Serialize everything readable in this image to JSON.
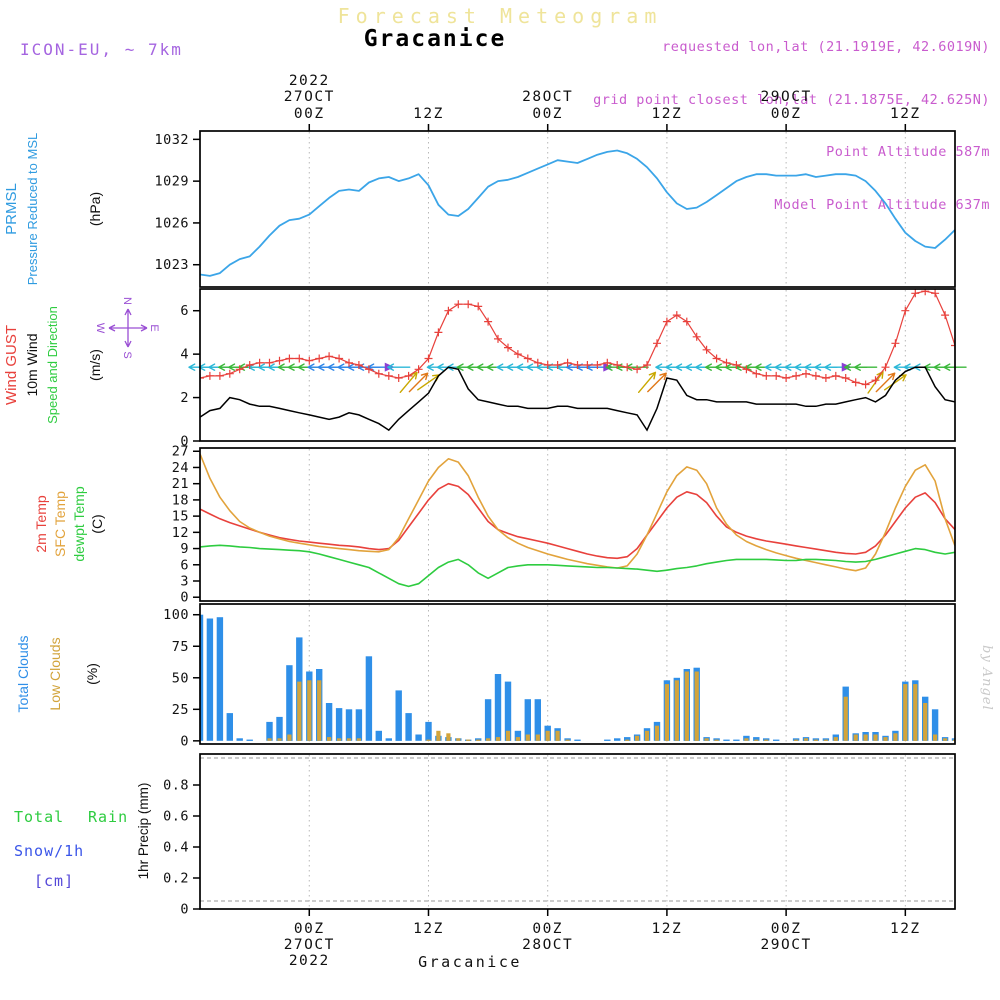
{
  "header": {
    "faint_title": "Forecast Meteogram",
    "station": "Gracanice",
    "model": "ICON-EU, ~ 7km",
    "requested": "requested lon,lat (21.1919E, 42.6019N)",
    "grid_point": "grid point closest lon,lat (21.1875E, 42.625N)",
    "point_altitude": "Point Altitude 587m",
    "model_altitude": "Model Point Altitude 637m"
  },
  "footer": {
    "station": "Gracanice"
  },
  "watermark": "by Angel",
  "labels": {
    "p1": {
      "l1": "PRMSL",
      "l2": "Pressure Reduced to MSL",
      "unit": "(hPa)"
    },
    "p2": {
      "l1": "Wind GUST",
      "l2": "10m Wind",
      "l3": "Speed and Direction",
      "unit": "(m/s)",
      "compass": {
        "n": "N",
        "s": "S",
        "w": "W",
        "e": "E"
      }
    },
    "p3": {
      "l1": "2m Temp",
      "l2": "SFC Temp",
      "l3": "dewpt Temp",
      "unit": "(C)"
    },
    "p4": {
      "l1": "Total Clouds",
      "l2": "Low Clouds",
      "unit": "(%)"
    },
    "p5": {
      "l1a": "Total",
      "l1b": "Rain",
      "l2": "Snow/1h",
      "l3": "[cm]",
      "unit": "1hr Precip (mm)"
    }
  },
  "chart_data": {
    "type": "meteogram",
    "x_axis": {
      "h0": 1,
      "h1": 77,
      "ticks": [
        {
          "h": 12,
          "z": "00Z",
          "date": "27OCT",
          "year": "2022"
        },
        {
          "h": 24,
          "z": "12Z"
        },
        {
          "h": 36,
          "z": "00Z",
          "date": "28OCT"
        },
        {
          "h": 48,
          "z": "12Z"
        },
        {
          "h": 60,
          "z": "00Z",
          "date": "29OCT"
        },
        {
          "h": 72,
          "z": "12Z"
        }
      ]
    },
    "panels": [
      {
        "name": "pressure",
        "type": "line",
        "ylim": [
          1021.4,
          1032.6
        ],
        "yticks": [
          1023,
          1026,
          1029,
          1032
        ],
        "ytick_labels": [
          "1023",
          "1026",
          "1029",
          "1032"
        ],
        "series": [
          {
            "name": "PRMSL",
            "color": "#3ba5e8",
            "values": [
              1022.3,
              1022.2,
              1022.4,
              1023.0,
              1023.4,
              1023.6,
              1024.3,
              1025.1,
              1025.8,
              1026.2,
              1026.3,
              1026.6,
              1027.2,
              1027.8,
              1028.3,
              1028.4,
              1028.3,
              1028.9,
              1029.2,
              1029.3,
              1029.0,
              1029.2,
              1029.5,
              1028.7,
              1027.3,
              1026.6,
              1026.5,
              1027.0,
              1027.8,
              1028.6,
              1029.0,
              1029.1,
              1029.3,
              1029.6,
              1029.9,
              1030.2,
              1030.5,
              1030.4,
              1030.3,
              1030.6,
              1030.9,
              1031.1,
              1031.2,
              1031.0,
              1030.6,
              1030.0,
              1029.2,
              1028.2,
              1027.4,
              1027.0,
              1027.1,
              1027.5,
              1028.0,
              1028.5,
              1029.0,
              1029.3,
              1029.5,
              1029.5,
              1029.4,
              1029.4,
              1029.4,
              1029.5,
              1029.3,
              1029.4,
              1029.5,
              1029.5,
              1029.4,
              1029.0,
              1028.3,
              1027.4,
              1026.3,
              1025.3,
              1024.7,
              1024.3,
              1024.2,
              1024.8,
              1025.5
            ]
          }
        ]
      },
      {
        "name": "wind",
        "type": "line",
        "ylim": [
          0,
          7
        ],
        "yticks": [
          0,
          2,
          4,
          6
        ],
        "ytick_labels": [
          "0",
          "2",
          "4",
          "6"
        ],
        "series": [
          {
            "name": "Wind GUST",
            "color": "#e8413c",
            "marker": "plus",
            "values": [
              2.9,
              3.0,
              3.0,
              3.1,
              3.3,
              3.5,
              3.6,
              3.6,
              3.7,
              3.8,
              3.8,
              3.7,
              3.8,
              3.9,
              3.8,
              3.6,
              3.5,
              3.3,
              3.1,
              3.0,
              2.9,
              3.0,
              3.3,
              3.8,
              5.0,
              6.0,
              6.3,
              6.3,
              6.2,
              5.5,
              4.7,
              4.3,
              4.0,
              3.8,
              3.6,
              3.5,
              3.5,
              3.6,
              3.5,
              3.5,
              3.5,
              3.6,
              3.5,
              3.4,
              3.3,
              3.5,
              4.5,
              5.5,
              5.8,
              5.5,
              4.8,
              4.2,
              3.8,
              3.6,
              3.5,
              3.3,
              3.1,
              3.0,
              3.0,
              2.9,
              3.0,
              3.1,
              3.0,
              2.9,
              3.0,
              2.9,
              2.7,
              2.6,
              2.8,
              3.4,
              4.5,
              6.0,
              6.8,
              6.9,
              6.8,
              5.8,
              4.4
            ]
          },
          {
            "name": "10m Wind",
            "color": "#000000",
            "values": [
              1.1,
              1.4,
              1.5,
              2.0,
              1.9,
              1.7,
              1.6,
              1.6,
              1.5,
              1.4,
              1.3,
              1.2,
              1.1,
              1.0,
              1.1,
              1.3,
              1.2,
              1.0,
              0.8,
              0.5,
              1.0,
              1.4,
              1.8,
              2.2,
              3.0,
              3.4,
              3.3,
              2.4,
              1.9,
              1.8,
              1.7,
              1.6,
              1.6,
              1.5,
              1.5,
              1.5,
              1.6,
              1.6,
              1.5,
              1.5,
              1.5,
              1.5,
              1.4,
              1.3,
              1.2,
              0.5,
              1.5,
              2.9,
              2.8,
              2.1,
              1.9,
              1.9,
              1.8,
              1.8,
              1.8,
              1.8,
              1.7,
              1.7,
              1.7,
              1.7,
              1.7,
              1.6,
              1.6,
              1.7,
              1.7,
              1.8,
              1.9,
              2.0,
              1.8,
              2.1,
              2.8,
              3.2,
              3.4,
              3.4,
              2.5,
              1.9,
              1.8
            ]
          }
        ],
        "direction_arrows": {
          "y": 3.4,
          "diag_y": 2.7,
          "default_angle": 180,
          "angle_overrides": {
            "20": 0,
            "22": 50,
            "23": 45,
            "24": 35,
            "42": 0,
            "46": 50,
            "47": 45,
            "66": 0,
            "69": 55,
            "70": 45,
            "71": 35
          },
          "palette": {
            "C": "#2bb8d8",
            "G": "#3bb83b",
            "B": "#2f86e8",
            "Y": "#c9a800",
            "O": "#e07818",
            "P": "#8a3fd4"
          },
          "colors": "CCCGGGCCCGGGBBBBBBBPCYOYCCCGGGGCCCCCCCBBBPGGGYOCCCCCGGGGGGCCCCCCCPGGYOYCCCGGG"
        }
      },
      {
        "name": "temperature",
        "type": "line",
        "ylim": [
          -0.7,
          27.6
        ],
        "yticks": [
          0,
          3,
          6,
          9,
          12,
          15,
          18,
          21,
          24,
          27
        ],
        "ytick_labels": [
          "0",
          "3",
          "6",
          "9",
          "12",
          "15",
          "18",
          "21",
          "24",
          "27"
        ],
        "series": [
          {
            "name": "2m Temp",
            "color": "#e8413c",
            "values": [
              16.3,
              15.4,
              14.5,
              13.8,
              13.2,
              12.6,
              12.0,
              11.5,
              11.0,
              10.7,
              10.4,
              10.2,
              10.0,
              9.8,
              9.6,
              9.5,
              9.3,
              9.0,
              8.8,
              9.0,
              10.5,
              13.0,
              15.5,
              18.0,
              20.0,
              21.0,
              20.5,
              19.0,
              16.5,
              14.0,
              12.5,
              11.8,
              11.2,
              10.8,
              10.4,
              10.0,
              9.5,
              9.0,
              8.5,
              8.0,
              7.6,
              7.3,
              7.2,
              7.5,
              9.0,
              11.5,
              14.0,
              16.5,
              18.5,
              19.5,
              19.0,
              17.5,
              15.0,
              13.0,
              12.0,
              11.3,
              10.8,
              10.4,
              10.1,
              9.8,
              9.5,
              9.2,
              8.9,
              8.6,
              8.3,
              8.1,
              8.0,
              8.3,
              9.5,
              11.5,
              14.0,
              16.5,
              18.5,
              19.3,
              17.5,
              14.5,
              12.5
            ]
          },
          {
            "name": "SFC Temp",
            "color": "#e2a33c",
            "values": [
              26.5,
              22.0,
              18.5,
              16.0,
              14.0,
              12.8,
              12.0,
              11.3,
              10.8,
              10.3,
              10.0,
              9.7,
              9.4,
              9.2,
              9.0,
              8.8,
              8.6,
              8.5,
              8.4,
              8.8,
              11.0,
              14.5,
              18.0,
              21.5,
              24.0,
              25.6,
              25.0,
              22.5,
              18.5,
              15.0,
              12.5,
              11.0,
              10.0,
              9.2,
              8.6,
              8.0,
              7.5,
              7.0,
              6.6,
              6.2,
              5.9,
              5.6,
              5.4,
              5.8,
              8.0,
              11.5,
              15.5,
              19.5,
              22.5,
              24.1,
              23.5,
              21.0,
              16.5,
              13.5,
              11.5,
              10.3,
              9.5,
              8.8,
              8.2,
              7.7,
              7.2,
              6.8,
              6.4,
              6.0,
              5.6,
              5.2,
              4.9,
              5.4,
              8.0,
              12.0,
              16.5,
              20.5,
              23.5,
              24.5,
              21.5,
              14.5,
              9.5
            ]
          },
          {
            "name": "dewpt Temp",
            "color": "#2ecc40",
            "values": [
              9.3,
              9.5,
              9.6,
              9.5,
              9.3,
              9.2,
              9.0,
              8.9,
              8.8,
              8.7,
              8.6,
              8.4,
              8.0,
              7.5,
              7.0,
              6.5,
              6.0,
              5.5,
              4.5,
              3.5,
              2.5,
              2.0,
              2.5,
              4.0,
              5.5,
              6.5,
              7.0,
              6.0,
              4.5,
              3.5,
              4.5,
              5.5,
              5.8,
              6.0,
              6.0,
              6.0,
              5.9,
              5.8,
              5.7,
              5.6,
              5.5,
              5.5,
              5.4,
              5.3,
              5.2,
              5.0,
              4.8,
              5.0,
              5.3,
              5.5,
              5.8,
              6.2,
              6.5,
              6.8,
              7.0,
              7.0,
              7.0,
              7.0,
              6.9,
              6.8,
              6.8,
              7.0,
              7.0,
              6.9,
              6.8,
              6.6,
              6.5,
              6.6,
              7.0,
              7.5,
              8.0,
              8.5,
              9.0,
              8.8,
              8.3,
              8.0,
              8.3
            ]
          }
        ]
      },
      {
        "name": "clouds",
        "type": "bar",
        "ylim": [
          -2.5,
          108.5
        ],
        "yticks": [
          0,
          25,
          50,
          75,
          100
        ],
        "ytick_labels": [
          "0",
          "25",
          "50",
          "75",
          "100"
        ],
        "series": [
          {
            "name": "Total Clouds",
            "color": "#2f8fe8",
            "values": [
              100,
              97,
              98,
              22,
              2,
              1,
              0,
              15,
              19,
              60,
              82,
              55,
              57,
              30,
              26,
              25,
              25,
              67,
              8,
              2,
              40,
              22,
              5,
              15,
              4,
              3,
              2,
              1,
              2,
              33,
              53,
              47,
              8,
              33,
              33,
              12,
              10,
              2,
              1,
              0,
              0,
              1,
              2,
              3,
              5,
              10,
              15,
              48,
              50,
              57,
              58,
              3,
              2,
              1,
              1,
              4,
              3,
              2,
              1,
              0,
              2,
              3,
              2,
              2,
              5,
              43,
              6,
              7,
              7,
              4,
              8,
              47,
              48,
              35,
              25,
              3,
              2
            ]
          },
          {
            "name": "Low Clouds",
            "color": "#d2a43c",
            "values": [
              0,
              0,
              0,
              0,
              0,
              0,
              0,
              2,
              2,
              5,
              47,
              48,
              48,
              3,
              2,
              2,
              2,
              0,
              0,
              0,
              0,
              0,
              0,
              1,
              8,
              6,
              2,
              1,
              1,
              2,
              3,
              8,
              3,
              5,
              5,
              8,
              8,
              1,
              0,
              0,
              0,
              0,
              0,
              1,
              4,
              8,
              12,
              45,
              48,
              55,
              55,
              2,
              1,
              0,
              0,
              2,
              1,
              1,
              0,
              0,
              1,
              2,
              1,
              1,
              3,
              35,
              5,
              5,
              5,
              3,
              6,
              45,
              45,
              30,
              5,
              2,
              1
            ]
          }
        ]
      },
      {
        "name": "precip",
        "type": "bar",
        "ylim": [
          0,
          1.0
        ],
        "yticks": [
          0,
          0.2,
          0.4,
          0.6,
          0.8
        ],
        "ytick_labels": [
          "0",
          "0.2",
          "0.4",
          "0.6",
          "0.8"
        ],
        "note": "no precipitation shown in forecast period",
        "series": [
          {
            "name": "Total Rain",
            "color": "#2ecc40",
            "values": []
          },
          {
            "name": "Snow/1h",
            "color": "#3a55e8",
            "values": []
          }
        ]
      }
    ]
  }
}
